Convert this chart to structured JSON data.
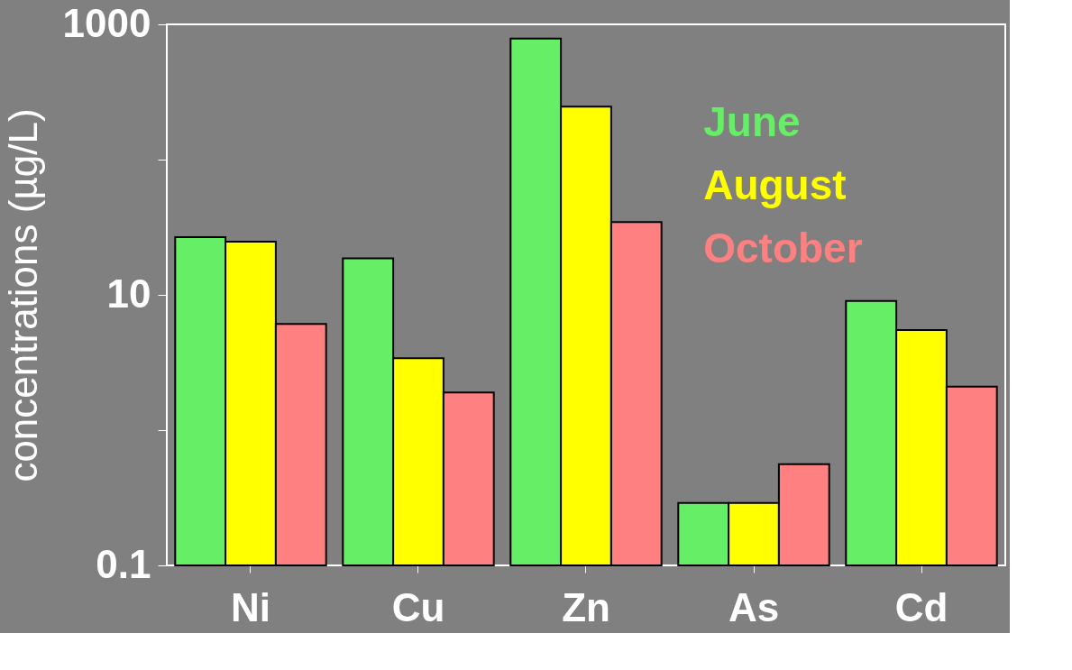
{
  "chart_data": {
    "type": "bar",
    "ylabel": "concentrations (µg/L)",
    "categories": [
      "Ni",
      "Cu",
      "Zn",
      "As",
      "Cd"
    ],
    "series": [
      {
        "name": "June",
        "color": "#66ee66",
        "values": [
          26.7,
          18.6,
          785,
          0.29,
          9.0
        ]
      },
      {
        "name": "August",
        "color": "#ffff00",
        "values": [
          24.7,
          3.4,
          246,
          0.29,
          5.5
        ]
      },
      {
        "name": "October",
        "color": "#ff8080",
        "values": [
          6.1,
          1.9,
          34.5,
          0.56,
          2.1
        ]
      }
    ],
    "log": "y",
    "ylim": [
      0.1,
      1000
    ],
    "yticks": [
      0.1,
      {
        "value": 1,
        "label": null
      },
      10,
      {
        "value": 100,
        "label": null
      },
      1000
    ],
    "grid": false,
    "legend": "top right"
  }
}
